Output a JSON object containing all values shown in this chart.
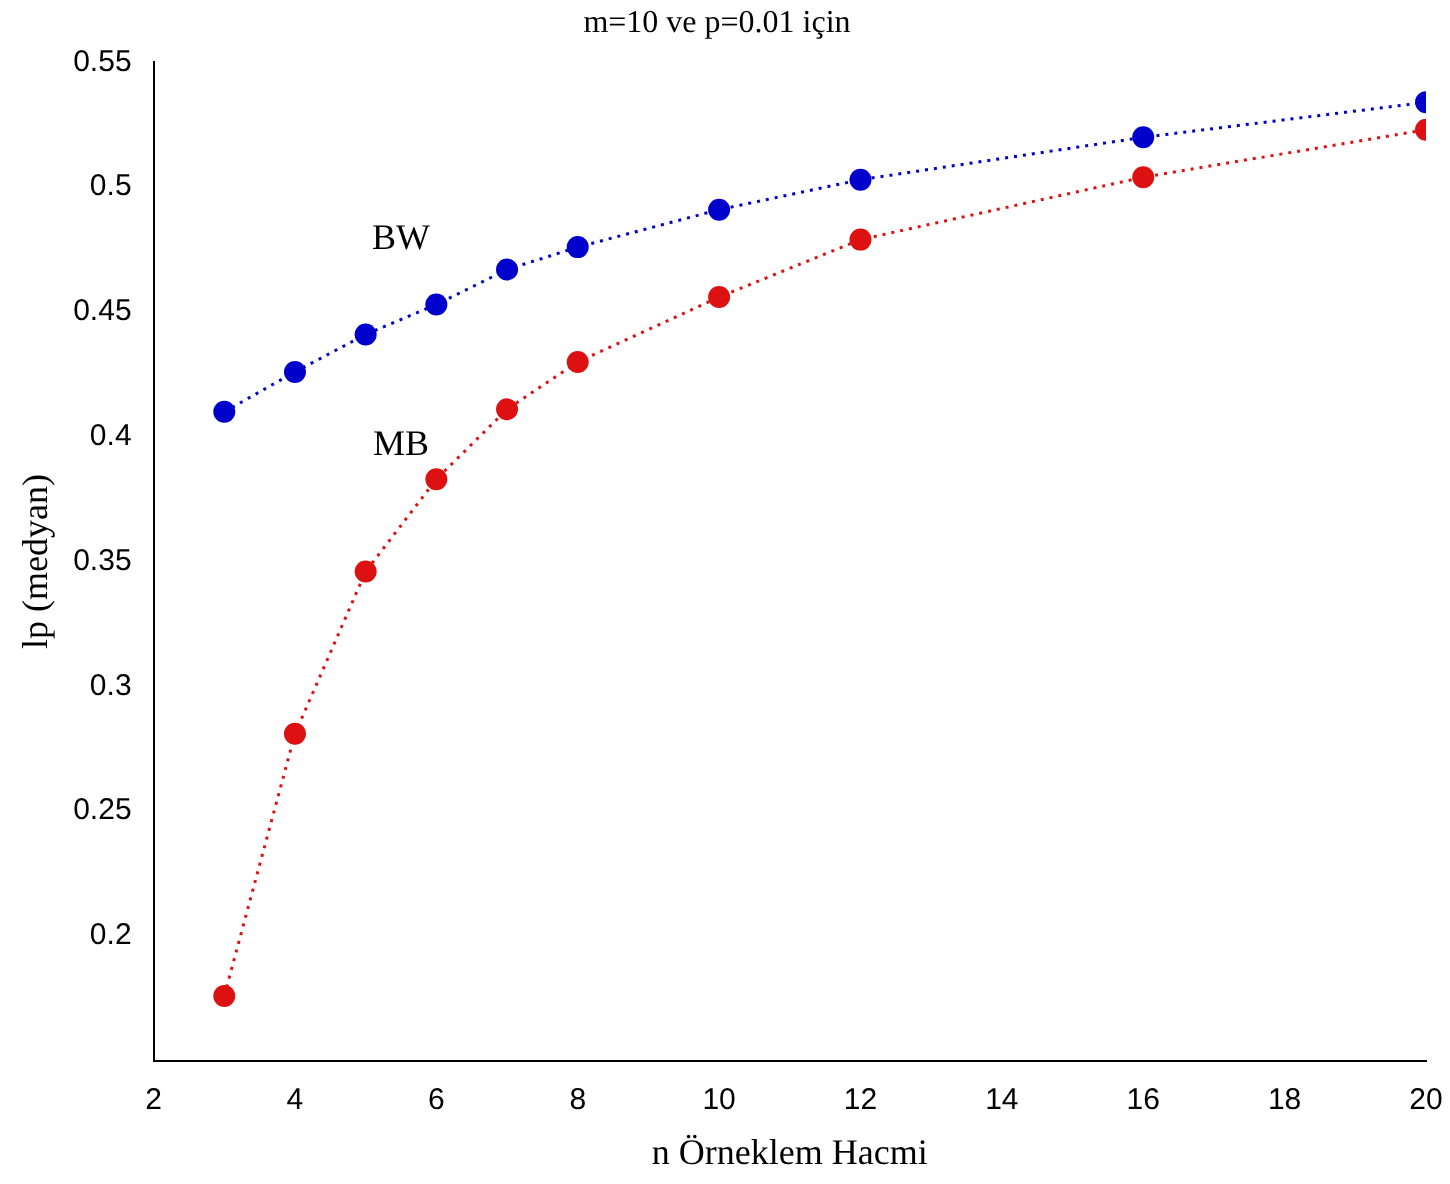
{
  "chart_data": {
    "type": "line",
    "title": "m=10 ve p=0.01 için",
    "xlabel": "n Örneklem Hacmi",
    "ylabel": "lp (medyan)",
    "x": [
      3,
      4,
      5,
      6,
      7,
      8,
      10,
      12,
      16,
      20
    ],
    "series": [
      {
        "name": "BW",
        "color": "#0000cc",
        "values": [
          0.41,
          0.426,
          0.441,
          0.453,
          0.467,
          0.476,
          0.491,
          0.503,
          0.52,
          0.534
        ]
      },
      {
        "name": "MB",
        "color": "#dd1111",
        "values": [
          0.176,
          0.281,
          0.346,
          0.383,
          0.411,
          0.43,
          0.456,
          0.479,
          0.504,
          0.523
        ]
      }
    ],
    "xlim": [
      2,
      20
    ],
    "xticks": [
      2,
      4,
      6,
      8,
      10,
      12,
      14,
      16,
      18,
      20
    ],
    "ylim": [
      0.15,
      0.55
    ],
    "yticks": [
      0.2,
      0.25,
      0.3,
      0.35,
      0.4,
      0.45,
      0.5,
      0.55
    ],
    "grid": false,
    "legend": false,
    "marker": "circle",
    "line_style": "dotted"
  }
}
